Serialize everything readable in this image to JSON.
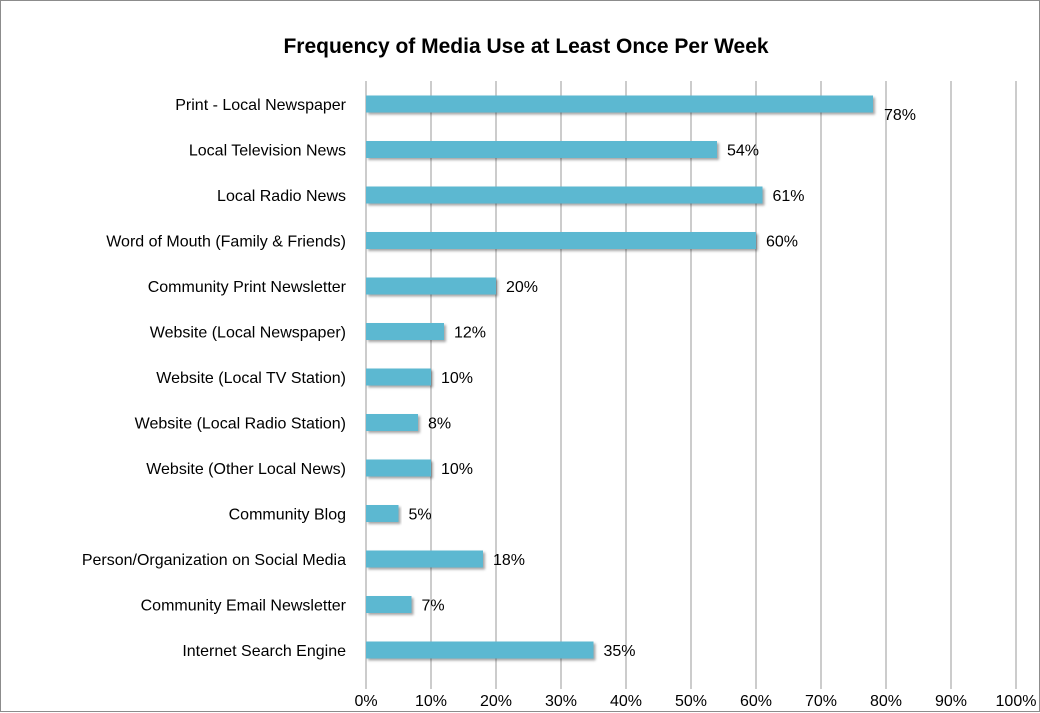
{
  "chart_data": {
    "type": "bar",
    "orientation": "horizontal",
    "title": "Frequency of Media Use at Least Once Per Week",
    "xlabel": "",
    "ylabel": "",
    "categories": [
      "Print - Local Newspaper",
      "Local Television News",
      "Local Radio News",
      "Word of Mouth (Family & Friends)",
      "Community Print Newsletter",
      "Website (Local Newspaper)",
      "Website (Local TV Station)",
      "Website (Local Radio Station)",
      "Website (Other Local News)",
      "Community Blog",
      "Person/Organization on Social Media",
      "Community Email Newsletter",
      "Internet Search Engine"
    ],
    "values": [
      78,
      54,
      61,
      60,
      20,
      12,
      10,
      8,
      10,
      5,
      18,
      7,
      35
    ],
    "data_labels": [
      "78%",
      "54%",
      "61%",
      "60%",
      "20%",
      "12%",
      "10%",
      "8%",
      "10%",
      "5%",
      "18%",
      "7%",
      "35%"
    ],
    "xlim": [
      0,
      100
    ],
    "x_ticks": [
      0,
      10,
      20,
      30,
      40,
      50,
      60,
      70,
      80,
      90,
      100
    ],
    "x_tick_labels": [
      "0%",
      "10%",
      "20%",
      "30%",
      "40%",
      "50%",
      "60%",
      "70%",
      "80%",
      "90%",
      "100%"
    ],
    "grid": "vertical",
    "legend": "none",
    "colors": {
      "bar": "#5bb8d1",
      "grid": "#9a9a9a",
      "border": "#8c8c8c"
    }
  }
}
